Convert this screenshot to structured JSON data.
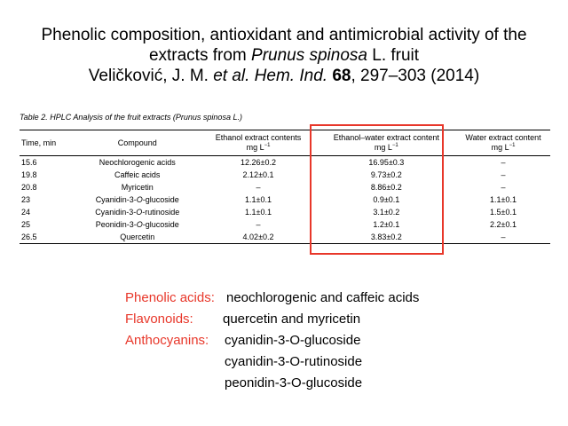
{
  "title": {
    "line1": "Phenolic composition, antioxidant and antimicrobial activity of the",
    "line2_prefix": "extracts from ",
    "line2_species": "Prunus spinosa",
    "line2_suffix": " L. fruit",
    "line3_author": "Veličković, J. M. ",
    "line3_etal": "et al. Hem. Ind.",
    "line3_volume": "68",
    "line3_pages": ", 297–303 (2014)"
  },
  "table": {
    "caption": "Table 2. HPLC Analysis of the fruit extracts (Prunus spinosa L.)",
    "headers": {
      "time": "Time, min",
      "compound": "Compound",
      "ethanol": "Ethanol extract contents",
      "ethanol_water": "Ethanol–water extract content",
      "water": "Water extract content",
      "unit": "mg L",
      "unit_exp": "−1"
    },
    "rows": [
      {
        "time": "15.6",
        "compound": "Neochlorogenic acids",
        "ethanol": "12.26±0.2",
        "ethanol_water": "16.95±0.3",
        "water": "–"
      },
      {
        "time": "19.8",
        "compound": "Caffeic acids",
        "ethanol": "2.12±0.1",
        "ethanol_water": "9.73±0.2",
        "water": "–"
      },
      {
        "time": "20.8",
        "compound": "Myricetin",
        "ethanol": "–",
        "ethanol_water": "8.86±0.2",
        "water": "–"
      },
      {
        "time": "23",
        "compound": "Cyanidin-3-O-glucoside",
        "ethanol": "1.1±0.1",
        "ethanol_water": "0.9±0.1",
        "water": "1.1±0.1"
      },
      {
        "time": "24",
        "compound": "Cyanidin-3-O-rutinoside",
        "ethanol": "1.1±0.1",
        "ethanol_water": "3.1±0.2",
        "water": "1.5±0.1"
      },
      {
        "time": "25",
        "compound": "Peonidin-3-O-glucoside",
        "ethanol": "–",
        "ethanol_water": "1.2±0.1",
        "water": "2.2±0.1"
      },
      {
        "time": "26.5",
        "compound": "Quercetin",
        "ethanol": "4.02±0.2",
        "ethanol_water": "3.83±0.2",
        "water": "–"
      }
    ]
  },
  "summary": [
    {
      "key": "Phenolic acids:",
      "values": [
        "neochlorogenic and caffeic acids"
      ]
    },
    {
      "key": "Flavonoids:",
      "values": [
        "quercetin and myricetin"
      ]
    },
    {
      "key": "Anthocyanins:",
      "values": [
        "cyanidin-3-O-glucoside",
        "cyanidin-3-O-rutinoside",
        "peonidin-3-O-glucoside"
      ]
    }
  ],
  "colors": {
    "accent": "#e8372a",
    "text": "#000000",
    "background": "#ffffff"
  }
}
